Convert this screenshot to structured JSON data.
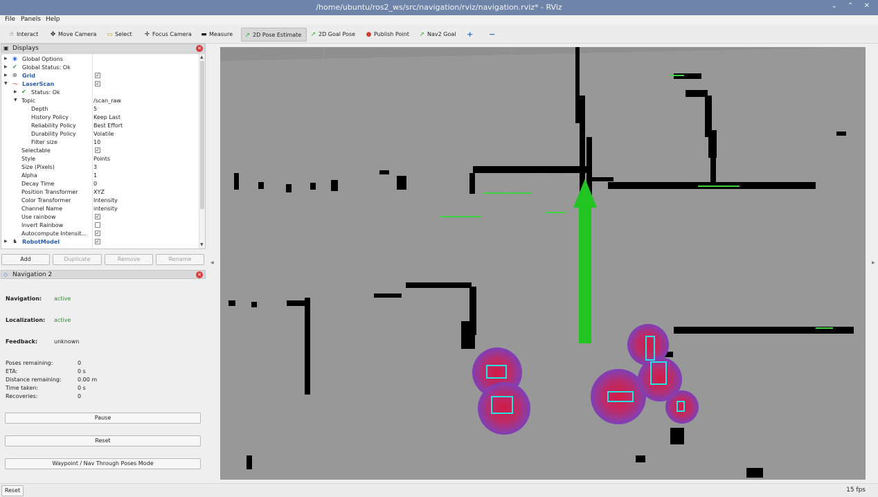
{
  "window": {
    "title": "/home/ubuntu/ros2_ws/src/navigation/rviz/navigation.rviz* - RViz",
    "controls": "⌄ ⌃ ✕"
  },
  "menu": [
    "File",
    "Panels",
    "Help"
  ],
  "toolbar": {
    "interact": "Interact",
    "move_camera": "Move Camera",
    "select": "Select",
    "focus_camera": "Focus Camera",
    "measure": "Measure",
    "pose_estimate": "2D Pose Estimate",
    "goal_pose": "2D Goal Pose",
    "publish_point": "Publish Point",
    "nav2_goal": "Nav2 Goal",
    "plus": "+",
    "minus": "−"
  },
  "displays": {
    "title": "Displays",
    "rows": {
      "global_options": "Global Options",
      "global_status": "Global Status: Ok",
      "grid": "Grid",
      "laserscan": "LaserScan",
      "status": "Status: Ok",
      "topic": "Topic",
      "topic_val": "/scan_raw",
      "depth": "Depth",
      "depth_val": "5",
      "history": "History Policy",
      "history_val": "Keep Last",
      "reliability": "Reliability Policy",
      "reliability_val": "Best Effort",
      "durability": "Durability Policy",
      "durability_val": "Volatile",
      "filter": "Filter size",
      "filter_val": "10",
      "selectable": "Selectable",
      "style": "Style",
      "style_val": "Points",
      "size": "Size (Pixels)",
      "size_val": "3",
      "alpha": "Alpha",
      "alpha_val": "1",
      "decay": "Decay Time",
      "decay_val": "0",
      "position_tf": "Position Transformer",
      "position_tf_val": "XYZ",
      "color_tf": "Color Transformer",
      "color_tf_val": "Intensity",
      "channel": "Channel Name",
      "channel_val": "intensity",
      "use_rainbow": "Use rainbow",
      "invert_rainbow": "Invert Rainbow",
      "autocompute": "Autocompute Intensit...",
      "robotmodel": "RobotModel"
    },
    "buttons": {
      "add": "Add",
      "duplicate": "Duplicate",
      "remove": "Remove",
      "rename": "Rename"
    }
  },
  "nav2": {
    "title": "Navigation 2",
    "navigation_label": "Navigation:",
    "navigation_value": "active",
    "localization_label": "Localization:",
    "localization_value": "active",
    "feedback_label": "Feedback:",
    "feedback_value": "unknown",
    "poses_label": "Poses remaining:",
    "poses_value": "0",
    "eta_label": "ETA:",
    "eta_value": "0 s",
    "distance_label": "Distance remaining:",
    "distance_value": "0.00 m",
    "time_label": "Time taken:",
    "time_value": "0 s",
    "recoveries_label": "Recoveries:",
    "recoveries_value": "0",
    "pause": "Pause",
    "reset": "Reset",
    "waypoint": "Waypoint / Nav Through Poses Mode"
  },
  "status": {
    "reset": "Reset",
    "fps": "15 fps"
  },
  "colors": {
    "titlebar": "#6e84a8",
    "map_free": "#8f8f8f",
    "wall": "#000000",
    "arrow": "#21c421",
    "active": "#2f8a2f",
    "link": "#2a5db0"
  }
}
